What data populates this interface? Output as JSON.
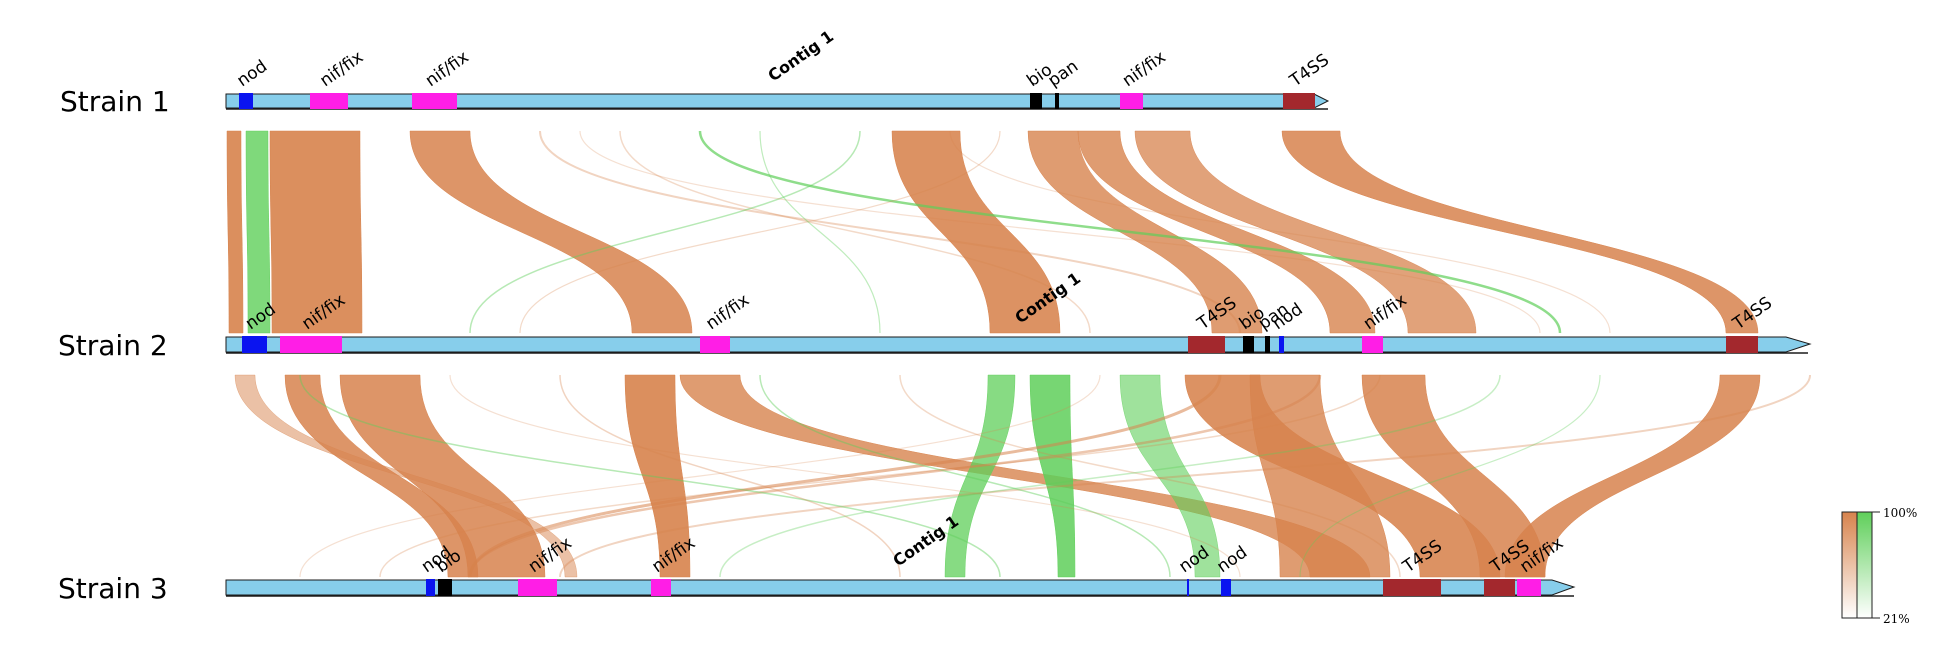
{
  "strains": [
    {
      "id": "s1",
      "label": "Strain 1",
      "contig": "Contig 1",
      "genes": [
        {
          "label": "nod",
          "color": "#0a14f0"
        },
        {
          "label": "nif/fix",
          "color": "#ff1ee6"
        },
        {
          "label": "nif/fix",
          "color": "#ff1ee6"
        },
        {
          "label": "bio",
          "color": "#000000"
        },
        {
          "label": "pan",
          "color": "#000000"
        },
        {
          "label": "nif/fix",
          "color": "#ff1ee6"
        },
        {
          "label": "T4SS",
          "color": "#a3282d"
        }
      ]
    },
    {
      "id": "s2",
      "label": "Strain 2",
      "contig": "Contig 1",
      "genes": [
        {
          "label": "nod",
          "color": "#0a14f0"
        },
        {
          "label": "nif/fix",
          "color": "#ff1ee6"
        },
        {
          "label": "nif/fix",
          "color": "#ff1ee6"
        },
        {
          "label": "T4SS",
          "color": "#a3282d"
        },
        {
          "label": "bio",
          "color": "#000000"
        },
        {
          "label": "pan",
          "color": "#000000"
        },
        {
          "label": "nod",
          "color": "#0a14f0"
        },
        {
          "label": "nif/fix",
          "color": "#ff1ee6"
        },
        {
          "label": "T4SS",
          "color": "#a3282d"
        }
      ]
    },
    {
      "id": "s3",
      "label": "Strain 3",
      "contig": "Contig 1",
      "genes": [
        {
          "label": "nod",
          "color": "#0a14f0"
        },
        {
          "label": "bio",
          "color": "#000000"
        },
        {
          "label": "nif/fix",
          "color": "#ff1ee6"
        },
        {
          "label": "nif/fix",
          "color": "#ff1ee6"
        },
        {
          "label": "nod",
          "color": "#0a14f0"
        },
        {
          "label": "nod",
          "color": "#0a14f0"
        },
        {
          "label": "T4SS",
          "color": "#a3282d"
        },
        {
          "label": "T4SS",
          "color": "#a3282d"
        },
        {
          "label": "nif/fix",
          "color": "#ff1ee6"
        }
      ]
    }
  ],
  "legend": {
    "max_label": "100%",
    "min_label": "21%",
    "forward_color": "#d7834d",
    "inverse_color": "#5fcf5a"
  },
  "colors": {
    "contig_fill": "#87ceeb",
    "contig_stroke": "#1b1b1b"
  }
}
